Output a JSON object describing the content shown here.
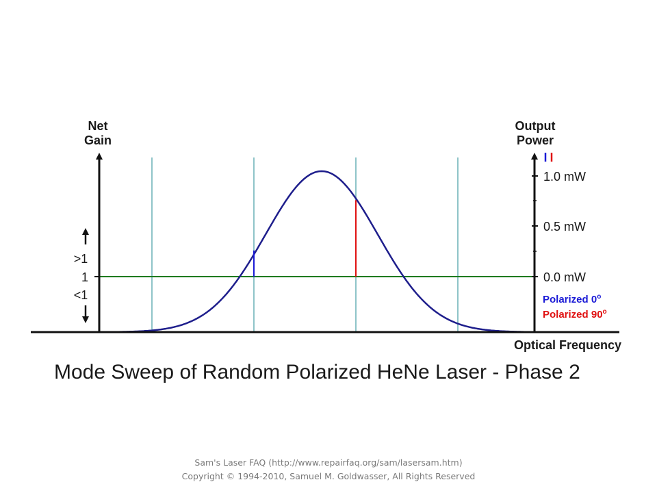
{
  "left_axis": {
    "title_line1": "Net",
    "title_line2": "Gain",
    "labels": {
      "above": ">1",
      "unity": "1",
      "below": "<1"
    }
  },
  "right_axis": {
    "title_line1": "Output",
    "title_line2": "Power",
    "ticks": [
      {
        "label": "1.0 mW",
        "value": 1.0
      },
      {
        "label": "0.5 mW",
        "value": 0.5
      },
      {
        "label": "0.0 mW",
        "value": 0.0
      }
    ]
  },
  "x_axis": {
    "label": "Optical Frequency"
  },
  "legend": {
    "items": [
      {
        "label": "Polarized 0",
        "degree": "o",
        "color": "#1a1ad6"
      },
      {
        "label": "Polarized 90",
        "degree": "o",
        "color": "#e01010"
      }
    ]
  },
  "modes": [
    {
      "polarization": "none",
      "power": 0
    },
    {
      "polarization": "0",
      "power": 0.26
    },
    {
      "polarization": "90",
      "power": 0.76
    },
    {
      "polarization": "none",
      "power": 0
    }
  ],
  "colors": {
    "gain_curve": "#1e1e8c",
    "mode_line": "#8ec4c8",
    "unity_line": "#1e7a1e",
    "pol0": "#1a1ad6",
    "pol90": "#e01010",
    "axis": "#111111"
  },
  "caption": "Mode Sweep of Random Polarized HeNe Laser - Phase 2",
  "footer": {
    "line1": "Sam's Laser FAQ (http://www.repairfaq.org/sam/lasersam.htm)",
    "line2": "Copyright © 1994-2010, Samuel M. Goldwasser, All Rights Reserved"
  }
}
